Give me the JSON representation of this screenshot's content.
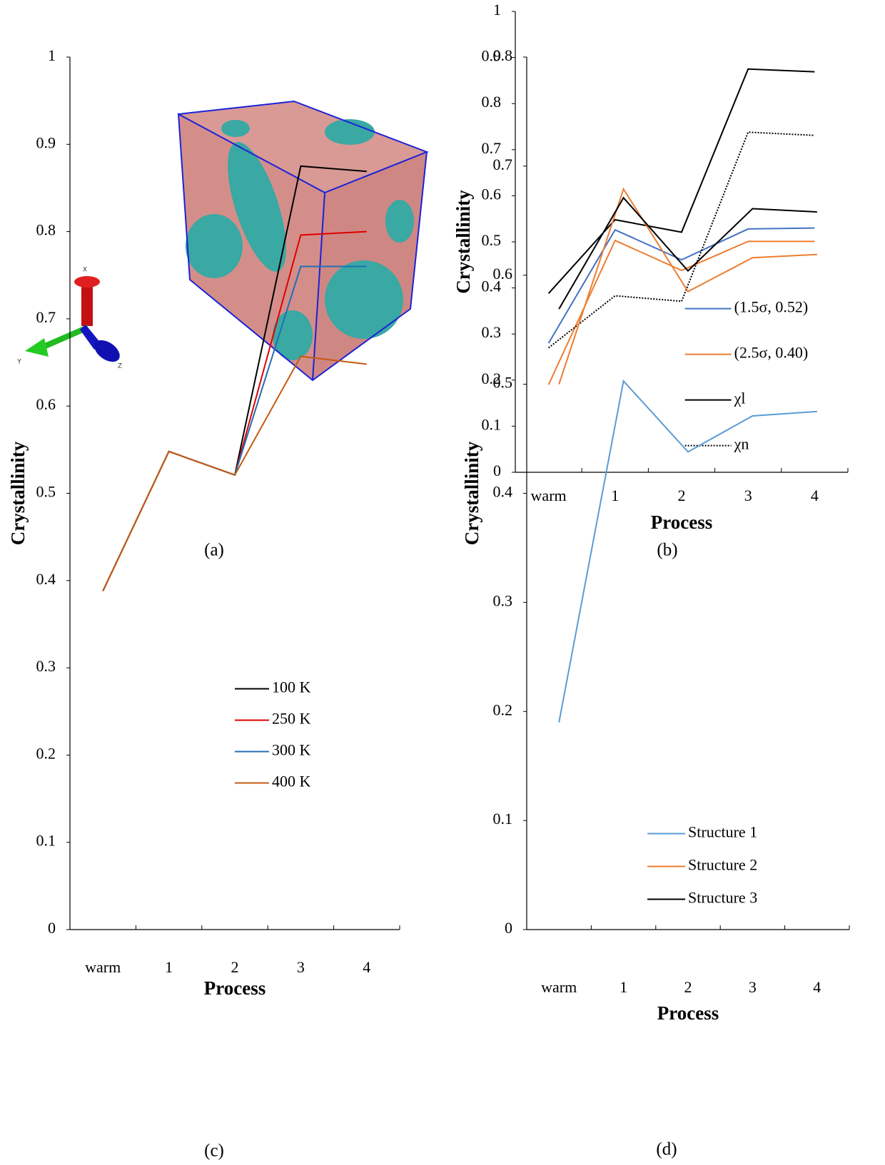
{
  "panel_a": {
    "axis_labels": {
      "x": "X",
      "y": "Y",
      "z": "Z"
    },
    "caption": "(a)"
  },
  "chart_data": [
    {
      "type": "line",
      "caption": "(b)",
      "x_label": "Process",
      "y_label": "Crystallinity",
      "categories": [
        "warm",
        "1",
        "2",
        "3",
        "4"
      ],
      "ylim": [
        0,
        1
      ],
      "yticks": [
        0,
        0.1,
        0.2,
        0.3,
        0.4,
        0.5,
        0.6,
        0.7,
        0.8,
        0.9,
        1
      ],
      "legend": "lower right",
      "series": [
        {
          "name": "(1.5σ, 0.52)",
          "color": "#4472c4",
          "line_style": "solid",
          "values": [
            0.28,
            0.526,
            0.461,
            0.528,
            0.53
          ]
        },
        {
          "name": "(2.5σ, 0.40)",
          "color": "#ed7d31",
          "line_style": "solid",
          "values": [
            0.19,
            0.503,
            0.438,
            0.501,
            0.501
          ]
        },
        {
          "name": "χl",
          "color": "#000000",
          "line_style": "solid",
          "values": [
            0.388,
            0.548,
            0.521,
            0.875,
            0.869
          ]
        },
        {
          "name": "χn",
          "color": "#000000",
          "line_style": "dotted",
          "values": [
            0.27,
            0.383,
            0.371,
            0.738,
            0.731
          ]
        }
      ]
    },
    {
      "type": "line",
      "caption": "(c)",
      "x_label": "Process",
      "y_label": "Crystallinity",
      "categories": [
        "warm",
        "1",
        "2",
        "3",
        "4"
      ],
      "ylim": [
        0,
        1
      ],
      "yticks": [
        0,
        0.1,
        0.2,
        0.3,
        0.4,
        0.5,
        0.6,
        0.7,
        0.8,
        0.9,
        1
      ],
      "legend": "center right",
      "series": [
        {
          "name": "100 K",
          "color": "#000000",
          "line_style": "solid",
          "values": [
            0.388,
            0.548,
            0.521,
            0.875,
            0.869
          ]
        },
        {
          "name": "250 K",
          "color": "#e00000",
          "line_style": "solid",
          "values": [
            0.388,
            0.548,
            0.521,
            0.796,
            0.8
          ]
        },
        {
          "name": "300 K",
          "color": "#1f6fb4",
          "line_style": "solid",
          "values": [
            0.388,
            0.548,
            0.521,
            0.76,
            0.76
          ]
        },
        {
          "name": "400 K",
          "color": "#c55a11",
          "line_style": "solid",
          "values": [
            0.388,
            0.548,
            0.521,
            0.657,
            0.648
          ]
        }
      ]
    },
    {
      "type": "line",
      "caption": "(d)",
      "x_label": "Process",
      "y_label": "Crystallinity",
      "categories": [
        "warm",
        "1",
        "2",
        "3",
        "4"
      ],
      "ylim": [
        0,
        0.8
      ],
      "yticks": [
        0,
        0.1,
        0.2,
        0.3,
        0.4,
        0.5,
        0.6,
        0.7,
        0.8
      ],
      "legend": "lower center",
      "series": [
        {
          "name": "Structure 1",
          "color": "#5b9bd5",
          "line_style": "solid",
          "values": [
            0.19,
            0.503,
            0.438,
            0.471,
            0.475
          ]
        },
        {
          "name": "Structure 2",
          "color": "#ed7d31",
          "line_style": "solid",
          "values": [
            0.5,
            0.679,
            0.585,
            0.616,
            0.619
          ]
        },
        {
          "name": "Structure 3",
          "color": "#000000",
          "line_style": "solid",
          "values": [
            0.569,
            0.671,
            0.604,
            0.661,
            0.658
          ]
        }
      ]
    }
  ]
}
